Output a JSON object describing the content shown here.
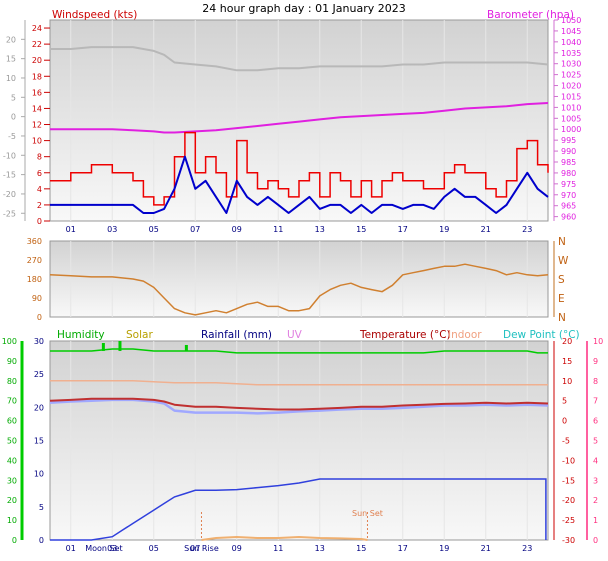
{
  "chart_data": [
    {
      "type": "line",
      "title": "24 hour graph day : 01 January 2023",
      "left_axis": {
        "label": "Windspeed (kts)",
        "ticks": [
          0,
          2,
          4,
          6,
          8,
          10,
          12,
          14,
          16,
          18,
          20,
          22,
          24
        ],
        "range": [
          0,
          25
        ]
      },
      "far_left_axis": {
        "ticks": [
          20,
          15,
          10,
          5,
          0,
          -5,
          -10,
          -15,
          -20,
          -25
        ],
        "range": [
          -27,
          25
        ]
      },
      "right_axis": {
        "label": "Barometer (hpa)",
        "ticks": [
          960,
          965,
          970,
          975,
          980,
          985,
          990,
          995,
          1000,
          1005,
          1010,
          1015,
          1020,
          1025,
          1030,
          1035,
          1040,
          1045,
          1050
        ],
        "range": [
          958,
          1050
        ]
      },
      "x_ticks": [
        "01",
        "03",
        "05",
        "07",
        "09",
        "11",
        "13",
        "15",
        "17",
        "19",
        "21",
        "23"
      ],
      "series": [
        {
          "name": "Barometer (hpa)",
          "axis": "right",
          "x": [
            0,
            1,
            2,
            3,
            4,
            5,
            5.5,
            6,
            7,
            8,
            9,
            10,
            11,
            12,
            13,
            14,
            15,
            16,
            17,
            18,
            19,
            20,
            21,
            22,
            23,
            24
          ],
          "values": [
            1000,
            1000,
            1000,
            1000,
            999.5,
            999,
            998.5,
            998.5,
            999,
            999.5,
            1000.5,
            1001.5,
            1002.5,
            1003.5,
            1004.5,
            1005.5,
            1006,
            1006.5,
            1007,
            1007.5,
            1008.5,
            1009.5,
            1010,
            1010.5,
            1011.5,
            1012
          ]
        },
        {
          "name": "outdoor temperature (faint)",
          "axis": "far_left",
          "x": [
            0,
            1,
            2,
            3,
            4,
            5,
            5.5,
            6,
            7,
            8,
            9,
            10,
            11,
            12,
            13,
            14,
            15,
            16,
            17,
            18,
            19,
            20,
            21,
            22,
            23,
            24
          ],
          "values": [
            17.5,
            17.5,
            18,
            18,
            18,
            17,
            16,
            14,
            13.5,
            13,
            12,
            12,
            12.5,
            12.5,
            13,
            13,
            13,
            13,
            13.5,
            13.5,
            14,
            14,
            14,
            14,
            14,
            13.5
          ]
        },
        {
          "name": "Wind average (kts)",
          "axis": "left",
          "x": [
            0,
            1,
            2,
            3,
            4,
            4.5,
            5,
            5.5,
            6,
            6.5,
            7,
            7.5,
            8,
            8.5,
            9,
            9.5,
            10,
            10.5,
            11,
            11.5,
            12,
            12.5,
            13,
            13.5,
            14,
            14.5,
            15,
            15.5,
            16,
            16.5,
            17,
            17.5,
            18,
            18.5,
            19,
            19.5,
            20,
            20.5,
            21,
            21.5,
            22,
            22.5,
            23,
            23.5,
            24
          ],
          "values": [
            2,
            2,
            2,
            2,
            2,
            1,
            1,
            1.5,
            4,
            8,
            4,
            5,
            3,
            1,
            5,
            3,
            2,
            3,
            2,
            1,
            2,
            3,
            1.5,
            2,
            2,
            1,
            2,
            1,
            2,
            2,
            1.5,
            2,
            2,
            1.5,
            3,
            4,
            3,
            3,
            2,
            1,
            2,
            4,
            6,
            4,
            3
          ]
        },
        {
          "name": "Wind gust (kts)",
          "axis": "left",
          "x": [
            0,
            1,
            2,
            3,
            4,
            4.5,
            5,
            5.5,
            6,
            6.5,
            7,
            7.5,
            8,
            8.5,
            9,
            9.5,
            10,
            10.5,
            11,
            11.5,
            12,
            12.5,
            13,
            13.5,
            14,
            14.5,
            15,
            15.5,
            16,
            16.5,
            17,
            17.5,
            18,
            18.5,
            19,
            19.5,
            20,
            20.5,
            21,
            21.5,
            22,
            22.5,
            23,
            23.5,
            24
          ],
          "values": [
            5,
            6,
            7,
            6,
            5,
            3,
            2,
            3,
            8,
            11,
            6,
            8,
            6,
            3,
            10,
            6,
            4,
            5,
            4,
            3,
            5,
            6,
            3,
            6,
            5,
            3,
            5,
            3,
            5,
            6,
            5,
            5,
            4,
            4,
            6,
            7,
            6,
            6,
            4,
            3,
            5,
            9,
            10,
            7,
            6
          ]
        }
      ]
    },
    {
      "type": "line",
      "right_ticks": [
        "N",
        "W",
        "S",
        "E",
        "N"
      ],
      "left_ticks": [
        360,
        270,
        180,
        90,
        0
      ],
      "range": [
        0,
        360
      ],
      "series": [
        {
          "name": "wind direction (degrees)",
          "x": [
            0,
            1,
            2,
            3,
            4,
            4.5,
            5,
            5.5,
            6,
            6.5,
            7,
            7.5,
            8,
            8.5,
            9,
            9.5,
            10,
            10.5,
            11,
            11.5,
            12,
            12.5,
            13,
            13.5,
            14,
            14.5,
            15,
            15.5,
            16,
            16.5,
            17,
            17.5,
            18,
            18.5,
            19,
            19.5,
            20,
            20.5,
            21,
            21.5,
            22,
            22.5,
            23,
            23.5,
            24
          ],
          "values": [
            200,
            195,
            190,
            190,
            180,
            170,
            140,
            90,
            40,
            20,
            10,
            20,
            30,
            20,
            40,
            60,
            70,
            50,
            50,
            30,
            30,
            40,
            100,
            130,
            150,
            160,
            140,
            130,
            120,
            150,
            200,
            210,
            220,
            230,
            240,
            240,
            250,
            240,
            230,
            220,
            200,
            210,
            200,
            195,
            200
          ]
        }
      ]
    },
    {
      "type": "line",
      "left_axis": {
        "label": "Humidity",
        "ticks": [
          100,
          90,
          80,
          70,
          60,
          50,
          40,
          30,
          20,
          10,
          0
        ],
        "range": [
          0,
          100
        ]
      },
      "left_axis2": {
        "ticks": [
          30,
          25,
          20,
          15,
          10,
          5,
          0
        ],
        "range": [
          0,
          30
        ]
      },
      "right_axis": {
        "ticks": [
          20,
          15,
          10,
          5,
          0,
          -5,
          -10,
          -15,
          -20,
          -25,
          -30
        ],
        "range": [
          -30,
          20
        ]
      },
      "far_right_axis": {
        "ticks": [
          10,
          9,
          8,
          7,
          6,
          5,
          4,
          3,
          2,
          1,
          0
        ],
        "range": [
          0,
          10
        ]
      },
      "legend": [
        "Humidity",
        "Solar",
        "Rainfall (mm)",
        "UV",
        "Temperature (°C)",
        "Indoor",
        "Dew Point (°C)"
      ],
      "x_ticks": [
        "01",
        "03",
        "05",
        "07",
        "09",
        "11",
        "13",
        "15",
        "17",
        "19",
        "21",
        "23"
      ],
      "annotations": [
        "Moon Set",
        "Sun Rise",
        "Sun Set"
      ],
      "series": [
        {
          "name": "Humidity",
          "axis": "left",
          "x": [
            0,
            1,
            2,
            3,
            4,
            5,
            6,
            6.5,
            7,
            8,
            9,
            10,
            11,
            12,
            13,
            14,
            15,
            16,
            17,
            18,
            19,
            20,
            21,
            22,
            23,
            23.5,
            24
          ],
          "values": [
            95,
            95,
            95,
            96,
            96,
            95,
            95,
            95,
            95,
            95,
            94,
            94,
            94,
            94,
            94,
            94,
            94,
            94,
            94,
            94,
            95,
            95,
            95,
            95,
            95,
            94,
            94
          ]
        },
        {
          "name": "Indoor",
          "axis": "right",
          "x": [
            0,
            2,
            4,
            6,
            8,
            10,
            12,
            14,
            16,
            18,
            20,
            22,
            24
          ],
          "values": [
            10,
            10,
            10,
            9.5,
            9.5,
            9,
            9,
            9,
            9,
            9,
            9,
            9,
            9
          ]
        },
        {
          "name": "Temperature (°C)",
          "axis": "right",
          "x": [
            0,
            1,
            2,
            3,
            4,
            5,
            5.5,
            6,
            7,
            8,
            9,
            10,
            11,
            12,
            13,
            14,
            15,
            16,
            17,
            18,
            19,
            20,
            21,
            22,
            23,
            24
          ],
          "values": [
            5,
            5.2,
            5.5,
            5.5,
            5.5,
            5.2,
            4.8,
            4,
            3.5,
            3.5,
            3.2,
            3,
            2.8,
            2.8,
            3,
            3.2,
            3.5,
            3.5,
            3.8,
            4,
            4.2,
            4.3,
            4.5,
            4.3,
            4.5,
            4.3
          ]
        },
        {
          "name": "Dew Point (°C)",
          "axis": "right",
          "x": [
            0,
            1,
            2,
            3,
            4,
            5,
            5.5,
            6,
            7,
            8,
            9,
            10,
            11,
            12,
            13,
            14,
            15,
            16,
            17,
            18,
            19,
            20,
            21,
            22,
            23,
            24
          ],
          "values": [
            4.5,
            4.8,
            5,
            5.2,
            5.2,
            4.8,
            4.3,
            2.5,
            2,
            2,
            2,
            1.8,
            2,
            2.3,
            2.5,
            2.8,
            3,
            3,
            3.2,
            3.5,
            3.8,
            3.8,
            4,
            3.8,
            4,
            3.8
          ]
        },
        {
          "name": "Rainfall (mm)",
          "axis": "left2",
          "x": [
            0,
            2,
            3,
            3.5,
            4,
            4.5,
            5,
            5.5,
            6,
            6.5,
            7,
            8,
            9,
            10,
            11,
            12,
            13,
            14,
            15,
            16,
            17,
            18,
            19,
            20,
            21,
            22,
            23,
            23.9
          ],
          "values": [
            0,
            0,
            0.5,
            1.5,
            2.5,
            3.5,
            4.5,
            5.5,
            6.5,
            7,
            7.5,
            7.5,
            7.6,
            7.9,
            8.2,
            8.6,
            9.2,
            9.2,
            9.2,
            9.2,
            9.2,
            9.2,
            9.2,
            9.2,
            9.2,
            9.2,
            9.2,
            9.2
          ]
        },
        {
          "name": "Solar",
          "axis": "left",
          "x": [
            7.3,
            8,
            9,
            10,
            11,
            12,
            13,
            14,
            15,
            15.3
          ],
          "values": [
            0,
            1,
            1.5,
            1,
            1,
            1.5,
            1,
            0.8,
            0.5,
            0
          ]
        }
      ]
    }
  ]
}
